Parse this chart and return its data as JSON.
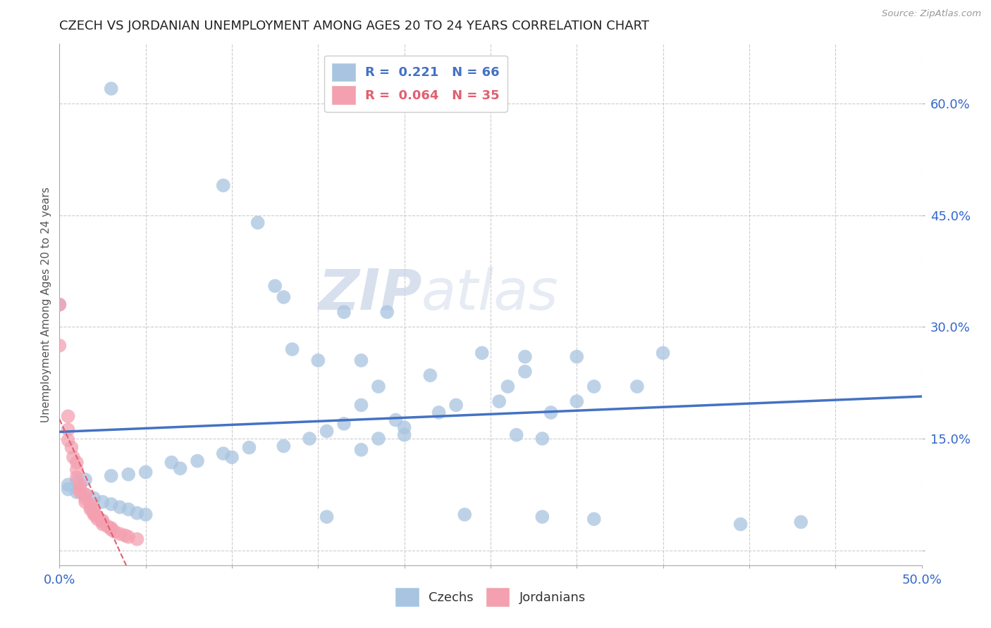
{
  "title": "CZECH VS JORDANIAN UNEMPLOYMENT AMONG AGES 20 TO 24 YEARS CORRELATION CHART",
  "source": "Source: ZipAtlas.com",
  "ylabel": "Unemployment Among Ages 20 to 24 years",
  "xlim": [
    0.0,
    0.5
  ],
  "ylim": [
    -0.02,
    0.68
  ],
  "xticks": [
    0.0,
    0.05,
    0.1,
    0.15,
    0.2,
    0.25,
    0.3,
    0.35,
    0.4,
    0.45,
    0.5
  ],
  "ytick_positions": [
    0.0,
    0.15,
    0.3,
    0.45,
    0.6
  ],
  "ytick_labels": [
    "",
    "15.0%",
    "30.0%",
    "45.0%",
    "60.0%"
  ],
  "R_czech": 0.221,
  "N_czech": 66,
  "R_jordan": 0.064,
  "N_jordan": 35,
  "czech_color": "#a8c4e0",
  "jordan_color": "#f4a0b0",
  "trend_czech_color": "#4472c4",
  "trend_jordan_color": "#e06070",
  "background_color": "#ffffff",
  "grid_color": "#cccccc",
  "watermark_zip": "ZIP",
  "watermark_atlas": "atlas",
  "czech_scatter": [
    [
      0.03,
      0.62
    ],
    [
      0.095,
      0.49
    ],
    [
      0.115,
      0.44
    ],
    [
      0.125,
      0.355
    ],
    [
      0.13,
      0.34
    ],
    [
      0.165,
      0.32
    ],
    [
      0.19,
      0.32
    ],
    [
      0.0,
      0.33
    ],
    [
      0.135,
      0.27
    ],
    [
      0.15,
      0.255
    ],
    [
      0.175,
      0.255
    ],
    [
      0.245,
      0.265
    ],
    [
      0.27,
      0.26
    ],
    [
      0.3,
      0.26
    ],
    [
      0.27,
      0.24
    ],
    [
      0.215,
      0.235
    ],
    [
      0.35,
      0.265
    ],
    [
      0.185,
      0.22
    ],
    [
      0.26,
      0.22
    ],
    [
      0.31,
      0.22
    ],
    [
      0.335,
      0.22
    ],
    [
      0.3,
      0.2
    ],
    [
      0.255,
      0.2
    ],
    [
      0.23,
      0.195
    ],
    [
      0.175,
      0.195
    ],
    [
      0.22,
      0.185
    ],
    [
      0.285,
      0.185
    ],
    [
      0.195,
      0.175
    ],
    [
      0.165,
      0.17
    ],
    [
      0.2,
      0.165
    ],
    [
      0.155,
      0.16
    ],
    [
      0.2,
      0.155
    ],
    [
      0.185,
      0.15
    ],
    [
      0.145,
      0.15
    ],
    [
      0.265,
      0.155
    ],
    [
      0.28,
      0.15
    ],
    [
      0.13,
      0.14
    ],
    [
      0.11,
      0.138
    ],
    [
      0.175,
      0.135
    ],
    [
      0.095,
      0.13
    ],
    [
      0.1,
      0.125
    ],
    [
      0.08,
      0.12
    ],
    [
      0.065,
      0.118
    ],
    [
      0.07,
      0.11
    ],
    [
      0.05,
      0.105
    ],
    [
      0.04,
      0.102
    ],
    [
      0.03,
      0.1
    ],
    [
      0.015,
      0.095
    ],
    [
      0.01,
      0.092
    ],
    [
      0.005,
      0.088
    ],
    [
      0.005,
      0.082
    ],
    [
      0.01,
      0.078
    ],
    [
      0.015,
      0.075
    ],
    [
      0.02,
      0.07
    ],
    [
      0.025,
      0.065
    ],
    [
      0.03,
      0.062
    ],
    [
      0.035,
      0.058
    ],
    [
      0.04,
      0.055
    ],
    [
      0.045,
      0.05
    ],
    [
      0.05,
      0.048
    ],
    [
      0.155,
      0.045
    ],
    [
      0.235,
      0.048
    ],
    [
      0.28,
      0.045
    ],
    [
      0.31,
      0.042
    ],
    [
      0.395,
      0.035
    ],
    [
      0.43,
      0.038
    ]
  ],
  "jordan_scatter": [
    [
      0.0,
      0.33
    ],
    [
      0.0,
      0.275
    ],
    [
      0.005,
      0.18
    ],
    [
      0.005,
      0.162
    ],
    [
      0.005,
      0.148
    ],
    [
      0.007,
      0.138
    ],
    [
      0.008,
      0.125
    ],
    [
      0.01,
      0.118
    ],
    [
      0.01,
      0.108
    ],
    [
      0.01,
      0.098
    ],
    [
      0.012,
      0.088
    ],
    [
      0.012,
      0.082
    ],
    [
      0.012,
      0.078
    ],
    [
      0.015,
      0.075
    ],
    [
      0.015,
      0.07
    ],
    [
      0.015,
      0.065
    ],
    [
      0.018,
      0.062
    ],
    [
      0.018,
      0.058
    ],
    [
      0.018,
      0.055
    ],
    [
      0.02,
      0.052
    ],
    [
      0.02,
      0.05
    ],
    [
      0.02,
      0.048
    ],
    [
      0.022,
      0.045
    ],
    [
      0.022,
      0.042
    ],
    [
      0.025,
      0.04
    ],
    [
      0.025,
      0.038
    ],
    [
      0.025,
      0.035
    ],
    [
      0.028,
      0.032
    ],
    [
      0.03,
      0.03
    ],
    [
      0.03,
      0.028
    ],
    [
      0.032,
      0.025
    ],
    [
      0.035,
      0.022
    ],
    [
      0.038,
      0.02
    ],
    [
      0.04,
      0.018
    ],
    [
      0.045,
      0.015
    ]
  ],
  "czech_trend": [
    0.0,
    0.5,
    0.13,
    0.27
  ],
  "jordan_trend": [
    0.0,
    0.5,
    0.12,
    0.25
  ]
}
